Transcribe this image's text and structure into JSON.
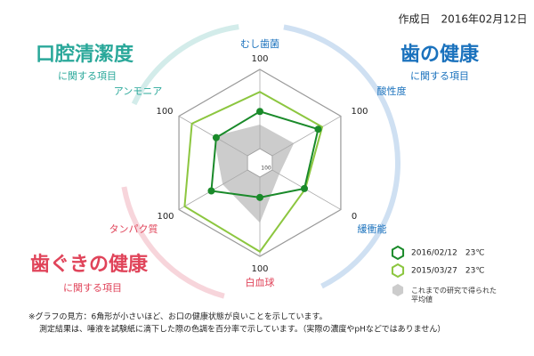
{
  "chart_data": {
    "type": "radar",
    "title": "作成日　2016年02月12日",
    "groups": [
      {
        "title": "口腔清潔度",
        "subtitle": "に関する項目",
        "color": "#2aa89a"
      },
      {
        "title": "歯の健康",
        "subtitle": "に関する項目",
        "color": "#1b72bd"
      },
      {
        "title": "歯ぐきの健康",
        "subtitle": "に関する項目",
        "color": "#e0445a"
      }
    ],
    "axes": [
      {
        "name": "むし歯菌",
        "color": "#1b72bd",
        "range": [
          0,
          100
        ]
      },
      {
        "name": "酸性度",
        "color": "#1b72bd",
        "range": [
          0,
          100
        ]
      },
      {
        "name": "緩衝能",
        "color": "#1b72bd",
        "range": [
          100,
          0
        ]
      },
      {
        "name": "白血球",
        "color": "#e0445a",
        "range": [
          0,
          100
        ]
      },
      {
        "name": "タンパク質",
        "color": "#e0445a",
        "range": [
          0,
          100
        ]
      },
      {
        "name": "アンモニア",
        "color": "#2aa89a",
        "range": [
          0,
          100
        ]
      }
    ],
    "series": [
      {
        "name": "2016/02/12　23℃",
        "color": "#1a8a2a",
        "values": [
          55,
          72,
          45,
          37,
          60,
          54
        ]
      },
      {
        "name": "2015/03/27　23℃",
        "color": "#8cc63f",
        "values": [
          76,
          77,
          44,
          95,
          93,
          84
        ]
      },
      {
        "name": "これまでの研究で得られた平均値",
        "color": "#cccccc",
        "values": [
          41,
          42,
          76,
          64,
          46,
          57
        ]
      }
    ],
    "notes": [
      "※グラフの見方：6角形が小さいほど、お口の健康状態が良いことを示しています。",
      "測定結果は、唾液を試験紙に滴下した際の色調を百分率で示しています。（実際の濃度やpHなどではありません）"
    ]
  }
}
